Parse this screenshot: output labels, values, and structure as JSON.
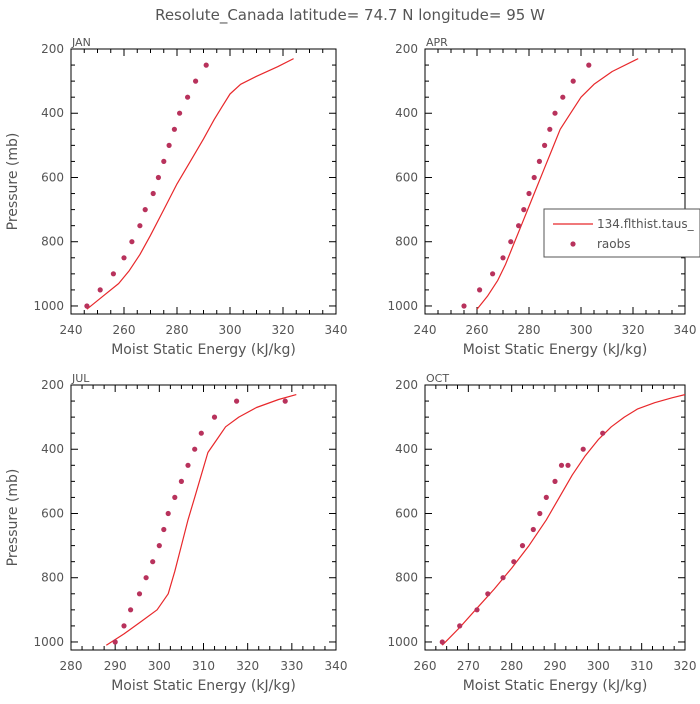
{
  "title": "Resolute_Canada  latitude= 74.7 N longitude= 95 W",
  "legend": {
    "line_label": "134.flthist.taus_",
    "dot_label": "raobs"
  },
  "colors": {
    "model_line": "#e8282b",
    "raobs": "#b8325c",
    "axis": "#000000",
    "text": "#555555"
  },
  "chart_data": [
    {
      "type": "line",
      "panel": "JAN",
      "xlabel": "Moist Static Energy (kJ/kg)",
      "ylabel": "Pressure (mb)",
      "xlim": [
        240,
        340
      ],
      "ylim": [
        1025,
        200
      ],
      "xticks": [
        240,
        260,
        280,
        300,
        320,
        340
      ],
      "yticks": [
        200,
        400,
        600,
        800,
        1000
      ],
      "series": [
        {
          "name": "134.flthist.taus_",
          "kind": "line",
          "x": [
            246,
            252,
            258,
            262,
            266,
            270,
            275,
            280,
            285,
            290,
            294,
            297,
            300,
            304,
            310,
            318,
            324
          ],
          "y": [
            1010,
            970,
            930,
            890,
            840,
            780,
            700,
            620,
            550,
            480,
            420,
            380,
            340,
            310,
            285,
            255,
            230
          ]
        },
        {
          "name": "raobs",
          "kind": "scatter",
          "x": [
            246,
            251,
            256,
            260,
            263,
            266,
            268,
            271,
            273,
            275,
            277,
            279,
            281,
            284,
            287,
            291
          ],
          "y": [
            1000,
            950,
            900,
            850,
            800,
            750,
            700,
            650,
            600,
            550,
            500,
            450,
            400,
            350,
            300,
            250
          ]
        }
      ]
    },
    {
      "type": "line",
      "panel": "APR",
      "xlabel": "Moist Static Energy (kJ/kg)",
      "ylabel": "",
      "xlim": [
        240,
        340
      ],
      "ylim": [
        1025,
        200
      ],
      "xticks": [
        240,
        260,
        280,
        300,
        320,
        340
      ],
      "yticks": [
        200,
        400,
        600,
        800,
        1000
      ],
      "series": [
        {
          "name": "134.flthist.taus_",
          "kind": "line",
          "x": [
            260,
            264,
            268,
            271,
            274,
            277,
            280,
            283,
            286,
            289,
            292,
            296,
            300,
            305,
            312,
            322
          ],
          "y": [
            1010,
            970,
            920,
            870,
            810,
            750,
            690,
            630,
            570,
            510,
            450,
            400,
            350,
            310,
            270,
            230
          ]
        },
        {
          "name": "raobs",
          "kind": "scatter",
          "x": [
            255,
            261,
            266,
            270,
            273,
            276,
            278,
            280,
            282,
            284,
            286,
            288,
            290,
            293,
            297,
            303
          ],
          "y": [
            1000,
            950,
            900,
            850,
            800,
            750,
            700,
            650,
            600,
            550,
            500,
            450,
            400,
            350,
            300,
            250
          ]
        }
      ]
    },
    {
      "type": "line",
      "panel": "JUL",
      "xlabel": "Moist Static Energy (kJ/kg)",
      "ylabel": "Pressure (mb)",
      "xlim": [
        280,
        340
      ],
      "ylim": [
        1025,
        200
      ],
      "xticks": [
        280,
        290,
        300,
        310,
        320,
        330,
        340
      ],
      "yticks": [
        200,
        400,
        600,
        800,
        1000
      ],
      "series": [
        {
          "name": "134.flthist.taus_",
          "kind": "line",
          "x": [
            288,
            292,
            296,
            299.5,
            302,
            303.5,
            305,
            306.5,
            308,
            309.5,
            311,
            313,
            315,
            318,
            322,
            327,
            331
          ],
          "y": [
            1010,
            975,
            935,
            900,
            850,
            780,
            700,
            620,
            550,
            480,
            410,
            370,
            330,
            300,
            270,
            245,
            230
          ]
        },
        {
          "name": "raobs",
          "kind": "scatter",
          "x": [
            290,
            292,
            293.5,
            295.5,
            297,
            298.5,
            300,
            301,
            302,
            303.5,
            305,
            306.5,
            308,
            309.5,
            312.5,
            317.5,
            328.5
          ],
          "y": [
            1000,
            950,
            900,
            850,
            800,
            750,
            700,
            650,
            600,
            550,
            500,
            450,
            400,
            350,
            300,
            250,
            250
          ]
        }
      ]
    },
    {
      "type": "line",
      "panel": "OCT",
      "xlabel": "Moist Static Energy (kJ/kg)",
      "ylabel": "",
      "xlim": [
        260,
        320
      ],
      "ylim": [
        1025,
        200
      ],
      "xticks": [
        260,
        270,
        280,
        290,
        300,
        310,
        320
      ],
      "yticks": [
        200,
        400,
        600,
        800,
        1000
      ],
      "series": [
        {
          "name": "134.flthist.taus_",
          "kind": "line",
          "x": [
            264,
            268,
            272,
            276,
            280,
            284,
            288,
            291,
            294,
            297,
            300,
            303,
            306,
            309,
            313,
            317,
            320
          ],
          "y": [
            1010,
            955,
            895,
            835,
            770,
            700,
            620,
            550,
            480,
            420,
            370,
            330,
            300,
            275,
            255,
            240,
            230
          ]
        },
        {
          "name": "raobs",
          "kind": "scatter",
          "x": [
            264,
            268,
            272,
            274.5,
            278,
            280.5,
            282.5,
            285,
            286.5,
            288,
            290,
            291.5,
            293,
            296.5,
            301
          ],
          "y": [
            1000,
            950,
            900,
            850,
            800,
            750,
            700,
            650,
            600,
            550,
            500,
            450,
            450,
            400,
            350
          ]
        }
      ]
    }
  ]
}
